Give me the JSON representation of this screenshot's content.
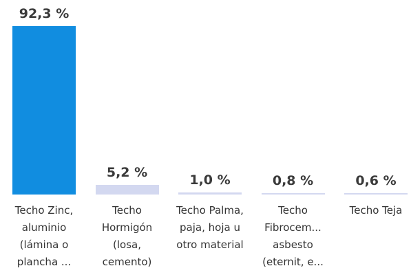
{
  "chart_data": {
    "type": "bar",
    "categories": [
      "Techo Zinc, aluminio (lámina o plancha ...",
      "Techo Hormigón (losa, cemento)",
      "Techo Palma, paja, hoja u otro material",
      "Techo Fibrocem... asbesto (eternit, e...",
      "Techo Teja"
    ],
    "values": [
      92.3,
      5.2,
      1.0,
      0.8,
      0.6
    ],
    "value_labels": [
      "92,3 %",
      "5,2 %",
      "1,0 %",
      "0,8 %",
      "0,6 %"
    ],
    "colors": [
      "#118de0",
      "#d3d8f0",
      "#d3d8f0",
      "#d3d8f0",
      "#d3d8f0"
    ]
  }
}
